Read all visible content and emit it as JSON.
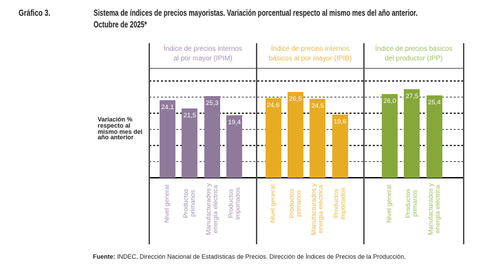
{
  "header": {
    "figure_label": "Gráfico 3.",
    "title_line1": "Sistema de índices de precios mayoristas. Variación porcentual respecto al mismo mes del año anterior.",
    "title_line2": "Octubre de 2025*"
  },
  "chart_data": {
    "type": "bar",
    "title": "Sistema de índices de precios mayoristas. Variación porcentual respecto al mismo mes del año anterior. Octubre de 2025*",
    "xlabel": "",
    "ylabel": "Variación % respecto al mismo mes del año anterior",
    "ylabel_lines": [
      "Variación %",
      "respecto al",
      "mismo mes del",
      "año anterior"
    ],
    "ylim": [
      0,
      34
    ],
    "grid": true,
    "grid_step": 5,
    "y_tick_labels_shown": false,
    "legend": "none",
    "decimal_separator": ",",
    "groups": [
      {
        "name": "Índice de precios internos al por mayor (IPIM)",
        "header_lines": [
          "Índice de precios internos",
          "al por mayor (IPIM)"
        ],
        "color": "#8f7a9c",
        "text_color": "#a392b0",
        "categories": [
          "Nivel general",
          "Productos primarios",
          "Manufacturados y energía eléctrica",
          "Productos importados"
        ],
        "category_lines": [
          [
            "Nivel general"
          ],
          [
            "Productos",
            "primarios"
          ],
          [
            "Manufacturados y",
            "energía eléctrica"
          ],
          [
            "Productos",
            "importados"
          ]
        ],
        "values": [
          24.1,
          21.5,
          25.3,
          19.4
        ],
        "value_labels": [
          "24,1",
          "21,5",
          "25,3",
          "19,4"
        ]
      },
      {
        "name": "Índice de precios internos básicos al por mayor (IPIB)",
        "header_lines": [
          "Índice de precios internos",
          "básicos al por mayor (IPIB)"
        ],
        "color": "#e8ac22",
        "text_color": "#e9b643",
        "categories": [
          "Nivel general",
          "Productos primarios",
          "Manufacturados y energía eléctrica",
          "Productos importados"
        ],
        "category_lines": [
          [
            "Nivel general"
          ],
          [
            "Productos",
            "primarios"
          ],
          [
            "Manufacturados y",
            "energía eléctrica"
          ],
          [
            "Productos",
            "importados"
          ]
        ],
        "values": [
          24.6,
          26.5,
          24.5,
          19.6
        ],
        "value_labels": [
          "24,6",
          "26,5",
          "24,5",
          "19,6"
        ]
      },
      {
        "name": "Índice de precios básicos del productor (IPP)",
        "header_lines": [
          "Índice de precios básicos",
          "del productor (IPP)"
        ],
        "color": "#86a83a",
        "text_color": "#9fbd5f",
        "categories": [
          "Nivel general",
          "Productos primarios",
          "Manufacturados y energía eléctrica"
        ],
        "category_lines": [
          [
            "Nivel general"
          ],
          [
            "Productos",
            "primarios"
          ],
          [
            "Manufacturados y",
            "energía eléctrica"
          ]
        ],
        "values": [
          26.0,
          27.5,
          25.4
        ],
        "value_labels": [
          "26,0",
          "27,5",
          "25,4"
        ]
      }
    ]
  },
  "footer": {
    "source_label": "Fuente:",
    "source_text": " INDEC, Dirección Nacional de Estadísticas de Precios. Dirección de Índices de Precios de la Producción."
  }
}
